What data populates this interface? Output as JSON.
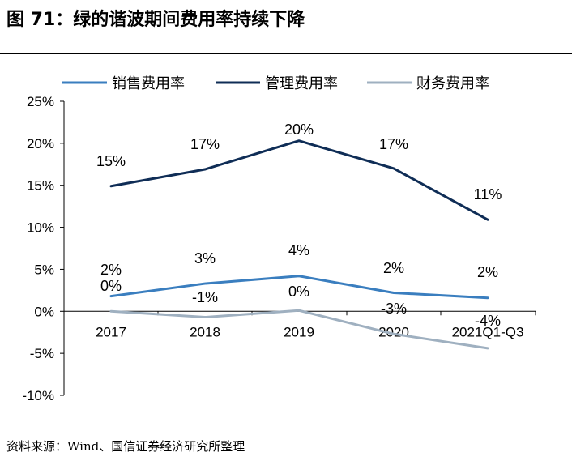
{
  "figure": {
    "title": "图 71：绿的谐波期间费用率持续下降",
    "source": "资料来源：Wind、国信证券经济研究所整理"
  },
  "chart_data": {
    "type": "line",
    "categories": [
      "2017",
      "2018",
      "2019",
      "2020",
      "2021Q1-Q3"
    ],
    "series": [
      {
        "name": "销售费用率",
        "color": "#3a7ebf",
        "values": [
          2,
          3,
          4,
          2,
          2
        ],
        "labels": [
          "2%",
          "3%",
          "4%",
          "2%",
          "2%"
        ],
        "plot_values": [
          1.8,
          3.3,
          4.2,
          2.2,
          1.6
        ]
      },
      {
        "name": "管理费用率",
        "color": "#0f2d56",
        "values": [
          15,
          17,
          20,
          17,
          11
        ],
        "labels": [
          "15%",
          "17%",
          "20%",
          "17%",
          "11%"
        ],
        "plot_values": [
          14.9,
          16.9,
          20.3,
          17.0,
          10.9
        ]
      },
      {
        "name": "财务费用率",
        "color": "#9fb0c0",
        "values": [
          0,
          -1,
          0,
          -3,
          -4
        ],
        "labels": [
          "0%",
          "-1%",
          "0%",
          "-3%",
          "-4%"
        ],
        "plot_values": [
          0.0,
          -0.7,
          0.1,
          -2.7,
          -4.4
        ]
      }
    ],
    "ylim": [
      -10,
      25
    ],
    "yticks": [
      25,
      20,
      15,
      10,
      5,
      0,
      -5,
      -10
    ],
    "ytick_labels": [
      "25%",
      "20%",
      "15%",
      "10%",
      "5%",
      "0%",
      "-5%",
      "-10%"
    ],
    "xlabel": "",
    "ylabel": "",
    "grid": false,
    "legend_position": "top"
  }
}
